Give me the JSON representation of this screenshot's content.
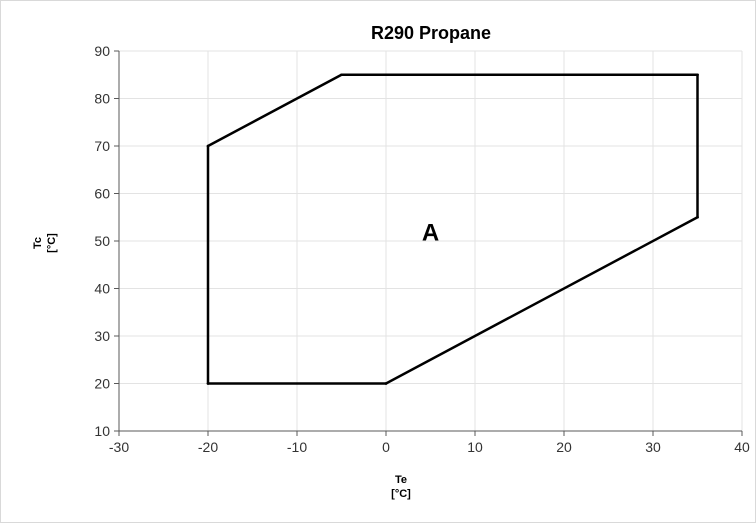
{
  "chart_data": {
    "type": "line",
    "title": "R290 Propane",
    "xlabel": {
      "line1": "Te",
      "line2": "[°C]"
    },
    "ylabel": {
      "line1": "Tc",
      "line2": "[°C]"
    },
    "xlim": [
      -30,
      40
    ],
    "ylim": [
      10,
      90
    ],
    "xticks": [
      -30,
      -20,
      -10,
      0,
      10,
      20,
      30,
      40
    ],
    "yticks": [
      10,
      20,
      30,
      40,
      50,
      60,
      70,
      80,
      90
    ],
    "grid": true,
    "legend": "none",
    "series": [
      {
        "closed": true,
        "color": "#000000",
        "points": [
          {
            "x": -20,
            "y": 20
          },
          {
            "x": 0,
            "y": 20
          },
          {
            "x": 35,
            "y": 55
          },
          {
            "x": 35,
            "y": 85
          },
          {
            "x": -5,
            "y": 85
          },
          {
            "x": -20,
            "y": 70
          }
        ]
      }
    ],
    "annotations": [
      {
        "text": "A",
        "x": 5,
        "y": 52
      }
    ]
  }
}
